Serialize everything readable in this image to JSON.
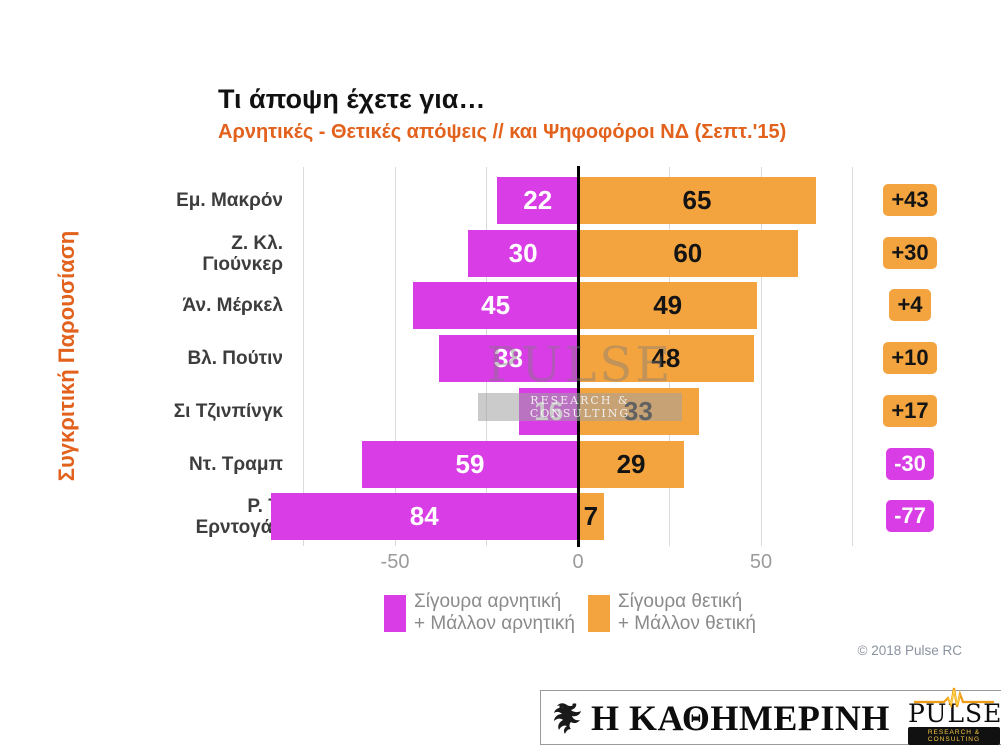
{
  "header": {
    "title": "Τι άποψη έχετε για…",
    "subtitle": "Αρνητικές - Θετικές απόψεις // και Ψηφοφόροι ΝΔ (Σεπτ.'15)"
  },
  "side_label": "Συγκριτική Παρουσίαση",
  "chart_data": {
    "type": "bar",
    "orientation": "horizontal-diverging",
    "categories": [
      "Εμ. Μακρόν",
      "Ζ. Κλ.\nΓιούνκερ",
      "Άν. Μέρκελ",
      "Βλ. Πούτιν",
      "Σι Τζινπίνγκ",
      "Ντ. Τραμπ",
      "Ρ. Τ.\nΕρντογάν"
    ],
    "series": [
      {
        "name": "Σίγουρα αρνητική + Μάλλον αρνητική",
        "direction": "negative",
        "color": "#d93de6",
        "values": [
          22,
          30,
          45,
          38,
          16,
          59,
          84
        ]
      },
      {
        "name": "Σίγουρα θετική + Μάλλον θετική",
        "direction": "positive",
        "color": "#f3a43e",
        "values": [
          65,
          60,
          49,
          48,
          33,
          29,
          7
        ]
      }
    ],
    "net_values": [
      "+43",
      "+30",
      "+4",
      "+10",
      "+17",
      "-30",
      "-77"
    ],
    "x_ticks": [
      {
        "value": -50,
        "label": "-50"
      },
      {
        "value": 0,
        "label": "0"
      },
      {
        "value": 50,
        "label": "50"
      }
    ],
    "xlim": [
      -80,
      80
    ],
    "gridline_step": 25,
    "grid": true,
    "legend_position": "bottom"
  },
  "watermark": {
    "text": "PULSE",
    "subtext": "RESEARCH & CONSULTING"
  },
  "legend": [
    {
      "label": "Σίγουρα αρνητική\n+ Μάλλον αρνητική",
      "color": "#d93de6"
    },
    {
      "label": "Σίγουρα θετική\n+ Μάλλον θετική",
      "color": "#f3a43e"
    }
  ],
  "copyright": "© 2018 Pulse RC",
  "footer": {
    "kathimerini": "Η ΚΑΘΗΜΕΡΙΝΗ",
    "pulse": "PULSE",
    "pulse_sub": "RESEARCH & CONSULTING"
  },
  "colors": {
    "accent": "#e2611c",
    "negative": "#d93de6",
    "positive": "#f3a43e",
    "axis": "#000000",
    "gridline": "#dadada"
  }
}
